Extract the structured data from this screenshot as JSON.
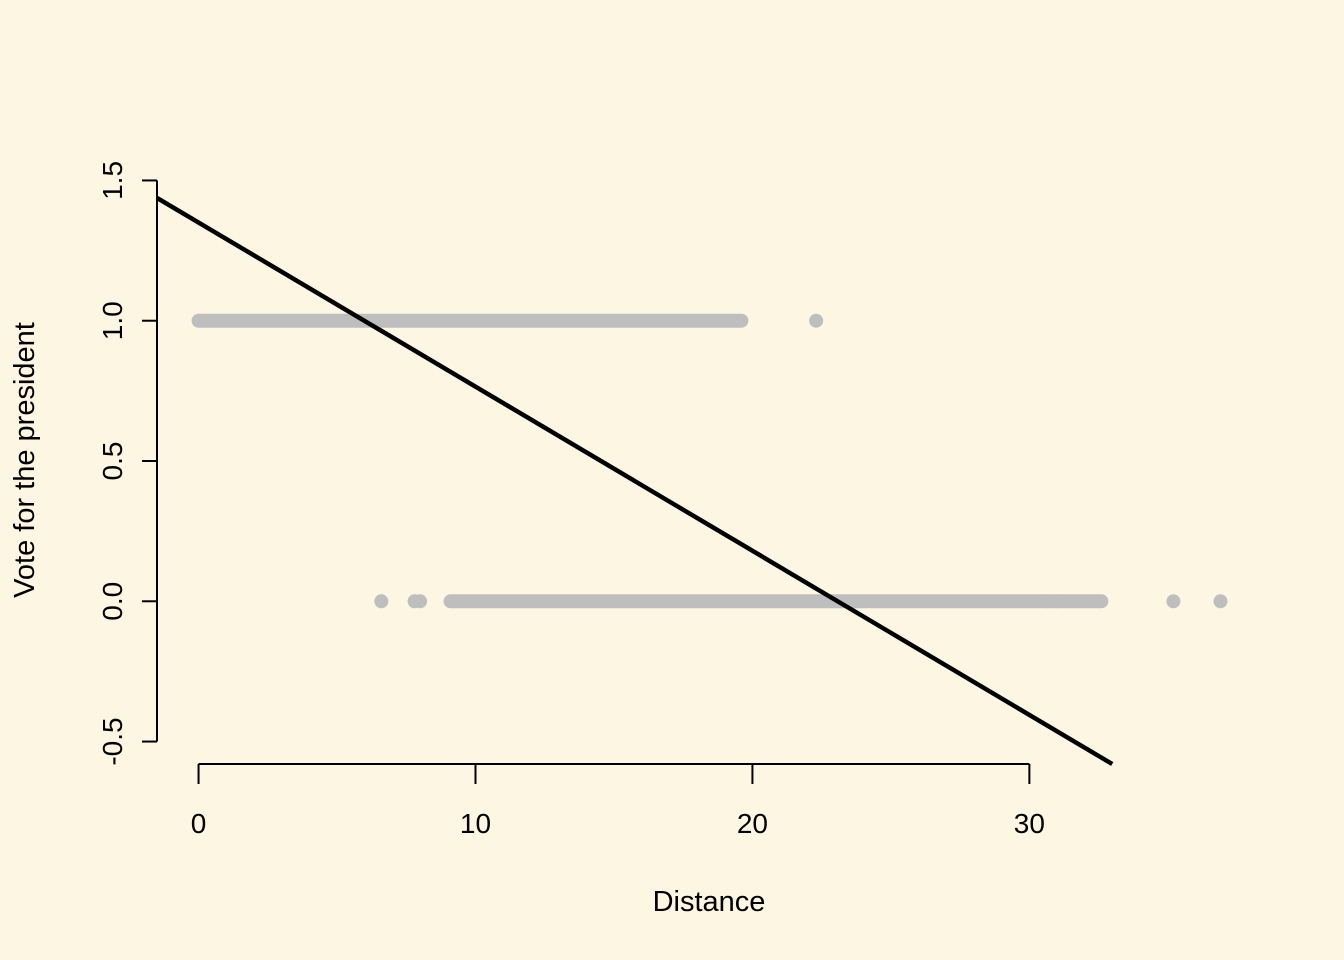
{
  "chart_data": {
    "type": "scatter",
    "title": "",
    "xlabel": "Distance",
    "ylabel": "Vote for the president",
    "xlim": [
      -1.5,
      33.2
    ],
    "ylim": [
      -0.58,
      1.58
    ],
    "x_ticks": [
      0,
      10,
      20,
      30
    ],
    "y_ticks": [
      -0.5,
      0.0,
      0.5,
      1.0,
      1.5
    ],
    "x_tick_labels": [
      "0",
      "10",
      "20",
      "30"
    ],
    "y_tick_labels": [
      "-0.5",
      "0.0",
      "0.5",
      "1.0",
      "1.5"
    ],
    "grid": false,
    "legend": "none",
    "point_color": "#bebebe",
    "line_color": "#000000",
    "background": "#fdf6e3",
    "series": [
      {
        "y": 1,
        "segments": [
          [
            0.0,
            19.6
          ]
        ],
        "points": [
          22.3
        ]
      },
      {
        "y": 0,
        "segments": [
          [
            9.1,
            32.6
          ]
        ],
        "points": [
          6.6,
          7.8,
          8.0,
          30.6,
          31.0,
          35.2,
          36.9
        ]
      }
    ],
    "fit_line": {
      "intercept": 1.35,
      "slope": -0.0585
    }
  }
}
